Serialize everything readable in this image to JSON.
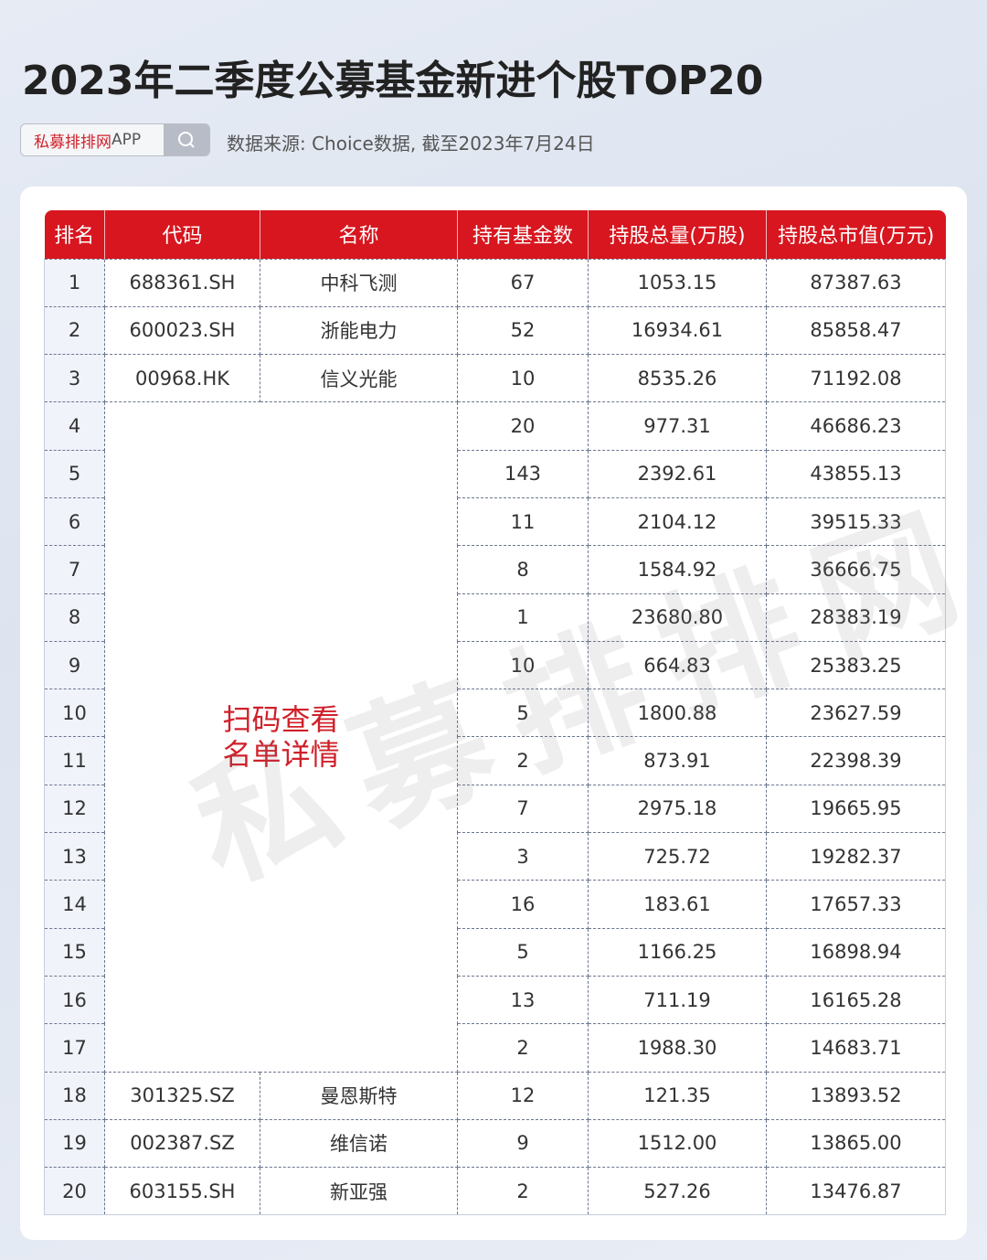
{
  "title": "2023年二季度公募基金新进个股TOP20",
  "search": {
    "brand": "私募排排网",
    "suffix": "APP"
  },
  "source": "数据来源: Choice数据, 截至2023年7月24日",
  "watermark": "私募排排网",
  "table": {
    "headers": [
      "排名",
      "代码",
      "名称",
      "持有基金数",
      "持股总量(万股)",
      "持股总市值(万元)"
    ],
    "merged_note": [
      "扫码查看",
      "名单详情"
    ],
    "rows": [
      [
        "1",
        "688361.SH",
        "中科飞测",
        "67",
        "1053.15",
        "87387.63"
      ],
      [
        "2",
        "600023.SH",
        "浙能电力",
        "52",
        "16934.61",
        "85858.47"
      ],
      [
        "3",
        "00968.HK",
        "信义光能",
        "10",
        "8535.26",
        "71192.08"
      ],
      [
        "4",
        null,
        null,
        "20",
        "977.31",
        "46686.23"
      ],
      [
        "5",
        null,
        null,
        "143",
        "2392.61",
        "43855.13"
      ],
      [
        "6",
        null,
        null,
        "11",
        "2104.12",
        "39515.33"
      ],
      [
        "7",
        null,
        null,
        "8",
        "1584.92",
        "36666.75"
      ],
      [
        "8",
        null,
        null,
        "1",
        "23680.80",
        "28383.19"
      ],
      [
        "9",
        null,
        null,
        "10",
        "664.83",
        "25383.25"
      ],
      [
        "10",
        null,
        null,
        "5",
        "1800.88",
        "23627.59"
      ],
      [
        "11",
        null,
        null,
        "2",
        "873.91",
        "22398.39"
      ],
      [
        "12",
        null,
        null,
        "7",
        "2975.18",
        "19665.95"
      ],
      [
        "13",
        null,
        null,
        "3",
        "725.72",
        "19282.37"
      ],
      [
        "14",
        null,
        null,
        "16",
        "183.61",
        "17657.33"
      ],
      [
        "15",
        null,
        null,
        "5",
        "1166.25",
        "16898.94"
      ],
      [
        "16",
        null,
        null,
        "13",
        "711.19",
        "16165.28"
      ],
      [
        "17",
        null,
        null,
        "2",
        "1988.30",
        "14683.71"
      ],
      [
        "18",
        "301325.SZ",
        "曼恩斯特",
        "12",
        "121.35",
        "13893.52"
      ],
      [
        "19",
        "002387.SZ",
        "维信诺",
        "9",
        "1512.00",
        "13865.00"
      ],
      [
        "20",
        "603155.SH",
        "新亚强",
        "2",
        "527.26",
        "13476.87"
      ]
    ]
  },
  "colors": {
    "accent": "#d7161f",
    "note": "#d0202a"
  }
}
